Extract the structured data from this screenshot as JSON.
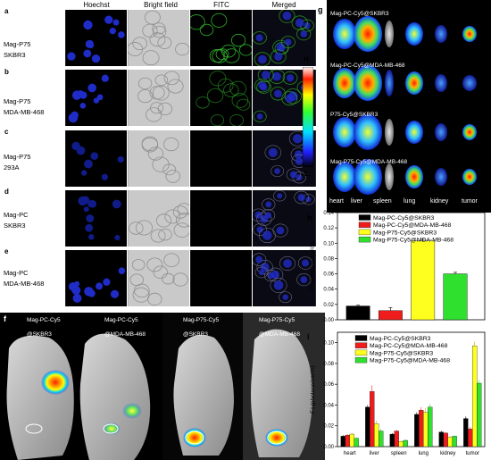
{
  "panel_a_e": {
    "letters": [
      "a",
      "b",
      "c",
      "d",
      "e"
    ],
    "columns": [
      "Hoechst",
      "Bright field",
      "FITC",
      "Merged"
    ],
    "rows": [
      {
        "line1": "Mag-P75",
        "line2": "SKBR3"
      },
      {
        "line1": "Mag-P75",
        "line2": "MDA-MB-468"
      },
      {
        "line1": "Mag-P75",
        "line2": "293A"
      },
      {
        "line1": "Mag-PC",
        "line2": "SKBR3"
      },
      {
        "line1": "Mag-PC",
        "line2": "MDA-MB-468"
      }
    ],
    "colors": {
      "hoechst": "#1f2cc8",
      "fitc": "#2fae2a",
      "bright": "#c9c9c9"
    }
  },
  "panel_f": {
    "letter": "f",
    "mice": [
      {
        "line1": "Mag-PC-Cy5",
        "line2": "@SKBR3"
      },
      {
        "line1": "Mag-PC-Cy5",
        "line2": "@MDA-MB-468"
      },
      {
        "line1": "Mag-P75-Cy5",
        "line2": "@SKBR3"
      },
      {
        "line1": "Mag-P75-Cy5",
        "line2": "@MDA-MB-468"
      }
    ]
  },
  "panel_g": {
    "letter": "g",
    "rows": [
      "Mag-PC-Cy5@SKBR3",
      "Mag-PC-Cy5@MDA-MB-468",
      "P75-Cy5@SKBR3",
      "Mag-P75-Cy5@MDA-MB-468"
    ],
    "organs": [
      "heart",
      "liver",
      "spleen",
      "lung",
      "kidney",
      "tumor"
    ],
    "colorbar": {
      "high": "H",
      "low": "L"
    }
  },
  "chart_data": [
    {
      "panel": "h",
      "type": "bar",
      "ylabel": "F.I.(photons/cm²/s)",
      "ylim": [
        0,
        0.14
      ],
      "yticks": [
        "0.00",
        "0.02",
        "0.04",
        "0.06",
        "0.08",
        "0.10",
        "0.12",
        "0.14"
      ],
      "legend_position": "top-right",
      "series": [
        {
          "name": "Mag-PC-Cy5@SKBR3",
          "color": "#000000",
          "values": [
            0.018
          ],
          "errors": [
            0.001
          ]
        },
        {
          "name": "Mag-PC-Cy5@MDA-MB-468",
          "color": "#ee1c1c",
          "values": [
            0.012
          ],
          "errors": [
            0.004
          ]
        },
        {
          "name": "Mag-P75-Cy5@SKBR3",
          "color": "#ffff1f",
          "values": [
            0.103
          ],
          "errors": [
            0.002
          ]
        },
        {
          "name": "Mag-P75-Cy5@MDA-MB-468",
          "color": "#2fe02f",
          "values": [
            0.06
          ],
          "errors": [
            0.002
          ]
        }
      ]
    },
    {
      "panel": "i",
      "type": "bar",
      "ylabel": "F.I.(photons/cm²/s)",
      "ylim": [
        0,
        0.11
      ],
      "yticks": [
        "0.00",
        "0.02",
        "0.04",
        "0.06",
        "0.08",
        "0.10"
      ],
      "categories": [
        "heart",
        "liver",
        "spleen",
        "lung",
        "kidney",
        "tumor"
      ],
      "legend_position": "top-left",
      "series": [
        {
          "name": "Mag-PC-Cy5@SKBR3",
          "color": "#000000",
          "values": [
            0.01,
            0.038,
            0.012,
            0.031,
            0.014,
            0.027
          ],
          "errors": [
            0.001,
            0.002,
            0.001,
            0.002,
            0.001,
            0.002
          ]
        },
        {
          "name": "Mag-PC-Cy5@MDA-MB-468",
          "color": "#ee1c1c",
          "values": [
            0.011,
            0.053,
            0.015,
            0.035,
            0.013,
            0.017
          ],
          "errors": [
            0.001,
            0.006,
            0.001,
            0.003,
            0.001,
            0.002
          ]
        },
        {
          "name": "Mag-P75-Cy5@SKBR3",
          "color": "#ffff1f",
          "values": [
            0.012,
            0.022,
            0.005,
            0.033,
            0.009,
            0.097
          ],
          "errors": [
            0.001,
            0.003,
            0.001,
            0.004,
            0.001,
            0.004
          ]
        },
        {
          "name": "Mag-P75-Cy5@MDA-MB-468",
          "color": "#2fe02f",
          "values": [
            0.008,
            0.015,
            0.006,
            0.038,
            0.01,
            0.061
          ],
          "errors": [
            0.001,
            0.002,
            0.001,
            0.003,
            0.001,
            0.003
          ]
        }
      ]
    }
  ]
}
